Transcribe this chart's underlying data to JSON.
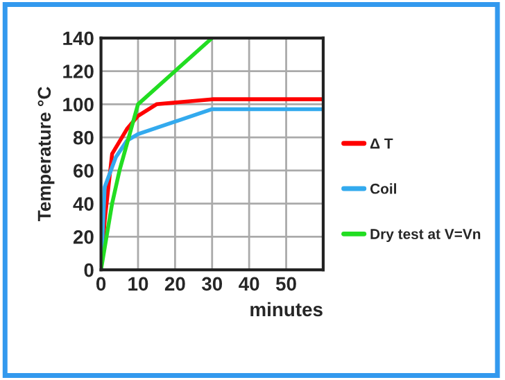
{
  "chart_data": {
    "type": "line",
    "xlabel": "minutes",
    "ylabel": "Temperature °C",
    "xlim": [
      0,
      60
    ],
    "xticks": [
      0,
      10,
      20,
      30,
      40,
      50
    ],
    "ylim": [
      0,
      140
    ],
    "yticks": [
      0,
      20,
      40,
      60,
      80,
      100,
      120,
      140
    ],
    "grid": true,
    "legend": "right",
    "marker": "none",
    "line_style": "solid",
    "series": [
      {
        "name": "Δ T",
        "color": "#ff0000",
        "x": [
          0,
          1,
          3,
          7,
          10,
          15,
          30,
          60
        ],
        "values": [
          0,
          30,
          70,
          85,
          93,
          100,
          103,
          103
        ]
      },
      {
        "name": "Coil",
        "color": "#33aaee",
        "x": [
          0,
          1,
          4,
          7,
          10,
          30,
          60
        ],
        "values": [
          0,
          50,
          68,
          78,
          82,
          97,
          97
        ]
      },
      {
        "name": "Dry test at V=Vn",
        "color": "#22dd22",
        "x": [
          0,
          3,
          5,
          10,
          20,
          30
        ],
        "values": [
          0,
          40,
          60,
          100,
          120,
          140
        ]
      }
    ]
  }
}
